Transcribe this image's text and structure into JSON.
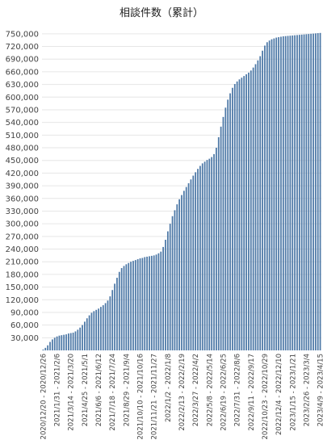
{
  "chart_data": {
    "type": "bar",
    "title": "相談件数（累計）",
    "xlabel": "",
    "ylabel": "",
    "ylim": [
      0,
      765000
    ],
    "y_ticks": [
      30000,
      60000,
      90000,
      120000,
      150000,
      180000,
      210000,
      240000,
      270000,
      300000,
      330000,
      360000,
      390000,
      420000,
      450000,
      480000,
      510000,
      540000,
      570000,
      600000,
      630000,
      660000,
      690000,
      720000,
      750000
    ],
    "y_tick_labels": [
      "30,000",
      "60,000",
      "90,000",
      "120,000",
      "150,000",
      "180,000",
      "210,000",
      "240,000",
      "270,000",
      "300,000",
      "330,000",
      "360,000",
      "390,000",
      "420,000",
      "450,000",
      "480,000",
      "510,000",
      "540,000",
      "570,000",
      "600,000",
      "630,000",
      "660,000",
      "690,000",
      "720,000",
      "750,000"
    ],
    "x_tick_labels": [
      {
        "index": 0,
        "label": "2020/12/20 - 2020/12/26"
      },
      {
        "index": 6,
        "label": "2021/1/31 - 2021/2/6"
      },
      {
        "index": 12,
        "label": "2021/3/14 - 2021/3/20"
      },
      {
        "index": 18,
        "label": "2021/4/25 - 2021/5/1"
      },
      {
        "index": 24,
        "label": "2021/6/6 - 2021/6/12"
      },
      {
        "index": 30,
        "label": "2021/7/18 - 2021/7/24"
      },
      {
        "index": 36,
        "label": "2021/8/29 - 2021/9/4"
      },
      {
        "index": 42,
        "label": "2021/10/10 - 2021/10/16"
      },
      {
        "index": 48,
        "label": "2021/11/21 - 2021/11/27"
      },
      {
        "index": 54,
        "label": "2022/1/2 - 2022/1/8"
      },
      {
        "index": 60,
        "label": "2022/2/13 - 2022/2/19"
      },
      {
        "index": 66,
        "label": "2022/3/27 - 2022/4/2"
      },
      {
        "index": 72,
        "label": "2022/5/8 - 2022/5/14"
      },
      {
        "index": 78,
        "label": "2022/6/19 - 2022/6/25"
      },
      {
        "index": 84,
        "label": "2022/7/31 - 2022/8/6"
      },
      {
        "index": 90,
        "label": "2022/9/11 - 2022/9/17"
      },
      {
        "index": 96,
        "label": "2022/10/23 - 2022/10/29"
      },
      {
        "index": 102,
        "label": "2022/12/4 - 2022/12/10"
      },
      {
        "index": 108,
        "label": "2023/1/15 - 2023/1/21"
      },
      {
        "index": 114,
        "label": "2023/2/26 - 2023/3/4"
      },
      {
        "index": 120,
        "label": "2023/4/9 - 2023/4/15"
      }
    ],
    "values": [
      2000,
      6000,
      12000,
      20000,
      26000,
      30000,
      33000,
      35000,
      36000,
      37000,
      38000,
      40000,
      41000,
      42000,
      45000,
      49000,
      54000,
      60000,
      68000,
      76000,
      83000,
      89000,
      93000,
      96000,
      99000,
      103000,
      107000,
      112000,
      118000,
      128000,
      143000,
      158000,
      172000,
      186000,
      195000,
      200000,
      204000,
      207000,
      210000,
      212000,
      214000,
      216000,
      218000,
      219000,
      221000,
      222000,
      223000,
      224000,
      225000,
      227000,
      230000,
      234000,
      245000,
      262000,
      282000,
      300000,
      318000,
      332000,
      346000,
      358000,
      368000,
      378000,
      387000,
      396000,
      405000,
      414000,
      422000,
      430000,
      437000,
      443000,
      447000,
      451000,
      454000,
      458000,
      465000,
      480000,
      505000,
      530000,
      553000,
      575000,
      594000,
      609000,
      622000,
      631000,
      637000,
      642000,
      646000,
      650000,
      654000,
      658000,
      663000,
      670000,
      678000,
      687000,
      697000,
      710000,
      722000,
      730000,
      734000,
      737000,
      739000,
      741000,
      742000,
      743000,
      744000,
      744500,
      745000,
      745500,
      746000,
      746500,
      747000,
      747500,
      748000,
      748500,
      749000,
      749500,
      750000,
      750500,
      751000,
      751500,
      752000
    ],
    "bar_color": "#4e79a7",
    "grid": true,
    "legend": "none"
  }
}
